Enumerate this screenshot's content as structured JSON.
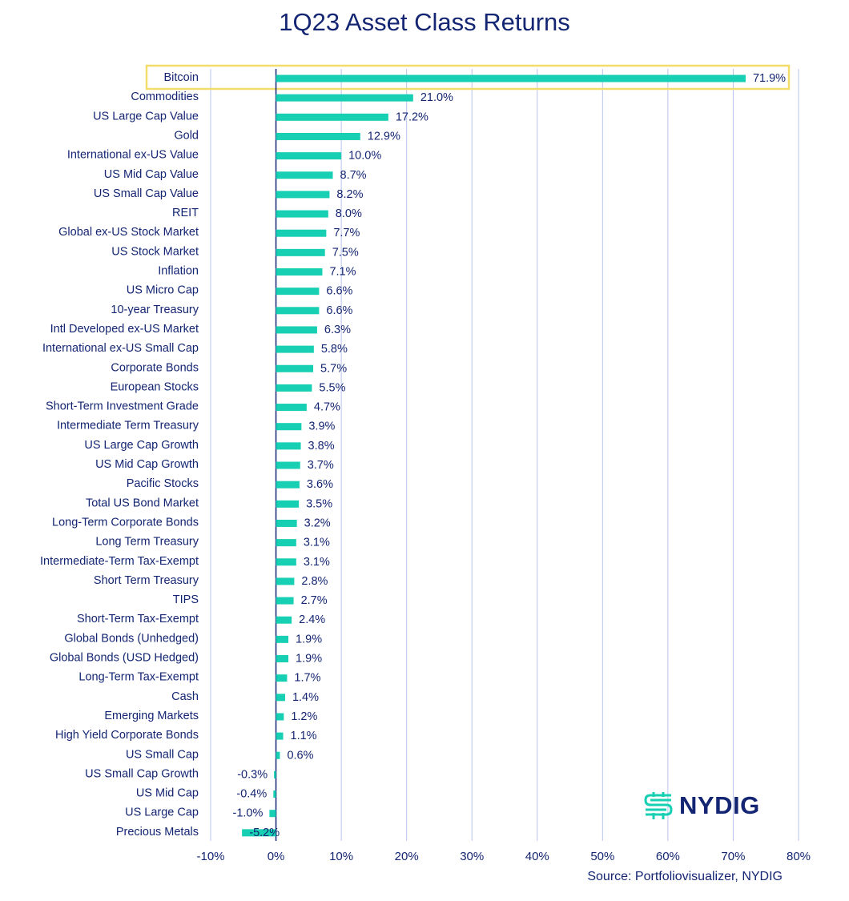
{
  "colors": {
    "bar": "#17cfb2",
    "text": "#142673",
    "grid": "#b8c4ee",
    "highlight": "#f2dd6a",
    "axis": "#142673"
  },
  "source": "Source: Portfoliovisualizer, NYDIG",
  "logo": {
    "name": "nydig-logo-icon",
    "text": "NYDIG"
  },
  "chart_data": {
    "type": "bar",
    "orientation": "horizontal",
    "title": "1Q23 Asset Class Returns",
    "xlabel": "",
    "ylabel": "",
    "xlim": [
      -10,
      80
    ],
    "xticks": [
      -10,
      0,
      10,
      20,
      30,
      40,
      50,
      60,
      70,
      80
    ],
    "xtick_labels": [
      "-10%",
      "0%",
      "10%",
      "20%",
      "30%",
      "40%",
      "50%",
      "60%",
      "70%",
      "80%"
    ],
    "grid": "vertical",
    "highlight_category": "Bitcoin",
    "categories": [
      "Bitcoin",
      "Commodities",
      "US Large Cap Value",
      "Gold",
      "International ex-US Value",
      "US Mid Cap Value",
      "US Small Cap Value",
      "REIT",
      "Global ex-US Stock Market",
      "US Stock Market",
      "Inflation",
      "US Micro Cap",
      "10-year Treasury",
      "Intl Developed ex-US Market",
      "International ex-US Small Cap",
      "Corporate Bonds",
      "European Stocks",
      "Short-Term Investment Grade",
      "Intermediate Term Treasury",
      "US Large Cap Growth",
      "US Mid Cap Growth",
      "Pacific Stocks",
      "Total US Bond Market",
      "Long-Term Corporate Bonds",
      "Long Term Treasury",
      "Intermediate-Term Tax-Exempt",
      "Short Term Treasury",
      "TIPS",
      "Short-Term Tax-Exempt",
      "Global Bonds (Unhedged)",
      "Global Bonds (USD Hedged)",
      "Long-Term Tax-Exempt",
      "Cash",
      "Emerging Markets",
      "High Yield Corporate Bonds",
      "US Small Cap",
      "US Small Cap Growth",
      "US Mid Cap",
      "US Large Cap",
      "Precious Metals"
    ],
    "values": [
      71.9,
      21.0,
      17.2,
      12.9,
      10.0,
      8.7,
      8.2,
      8.0,
      7.7,
      7.5,
      7.1,
      6.6,
      6.6,
      6.3,
      5.8,
      5.7,
      5.5,
      4.7,
      3.9,
      3.8,
      3.7,
      3.6,
      3.5,
      3.2,
      3.1,
      3.1,
      2.8,
      2.7,
      2.4,
      1.9,
      1.9,
      1.7,
      1.4,
      1.2,
      1.1,
      0.6,
      -0.3,
      -0.4,
      -1.0,
      -5.2
    ],
    "value_labels": [
      "71.9%",
      "21.0%",
      "17.2%",
      "12.9%",
      "10.0%",
      "8.7%",
      "8.2%",
      "8.0%",
      "7.7%",
      "7.5%",
      "7.1%",
      "6.6%",
      "6.6%",
      "6.3%",
      "5.8%",
      "5.7%",
      "5.5%",
      "4.7%",
      "3.9%",
      "3.8%",
      "3.7%",
      "3.6%",
      "3.5%",
      "3.2%",
      "3.1%",
      "3.1%",
      "2.8%",
      "2.7%",
      "2.4%",
      "1.9%",
      "1.9%",
      "1.7%",
      "1.4%",
      "1.2%",
      "1.1%",
      "0.6%",
      "-0.3%",
      "-0.4%",
      "-1.0%",
      "-5.2%"
    ]
  }
}
